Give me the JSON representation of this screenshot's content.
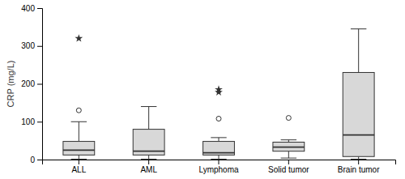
{
  "chart_data": {
    "type": "box",
    "categories": [
      "ALL",
      "AML",
      "Lymphoma",
      "Solid tumor",
      "Brain tumor"
    ],
    "boxes": [
      {
        "q1": 12,
        "median": 25,
        "q3": 48,
        "whislo": 1,
        "whishi": 100,
        "fliers_circle": [
          130
        ],
        "fliers_star": [
          320
        ]
      },
      {
        "q1": 12,
        "median": 22,
        "q3": 80,
        "whislo": 1,
        "whishi": 140,
        "fliers_circle": [],
        "fliers_star": []
      },
      {
        "q1": 12,
        "median": 18,
        "q3": 48,
        "whislo": 1,
        "whishi": 58,
        "fliers_circle": [
          108
        ],
        "fliers_star": [
          178,
          185
        ]
      },
      {
        "q1": 22,
        "median": 33,
        "q3": 46,
        "whislo": 4,
        "whishi": 52,
        "fliers_circle": [
          110
        ],
        "fliers_star": []
      },
      {
        "q1": 8,
        "median": 65,
        "q3": 230,
        "whislo": 1,
        "whishi": 345,
        "fliers_circle": [],
        "fliers_star": []
      }
    ],
    "ylim": [
      0,
      400
    ],
    "yticks": [
      0,
      100,
      200,
      300,
      400
    ],
    "ylabel": "CRP (mg/L)",
    "color": "#d8d8d8"
  }
}
